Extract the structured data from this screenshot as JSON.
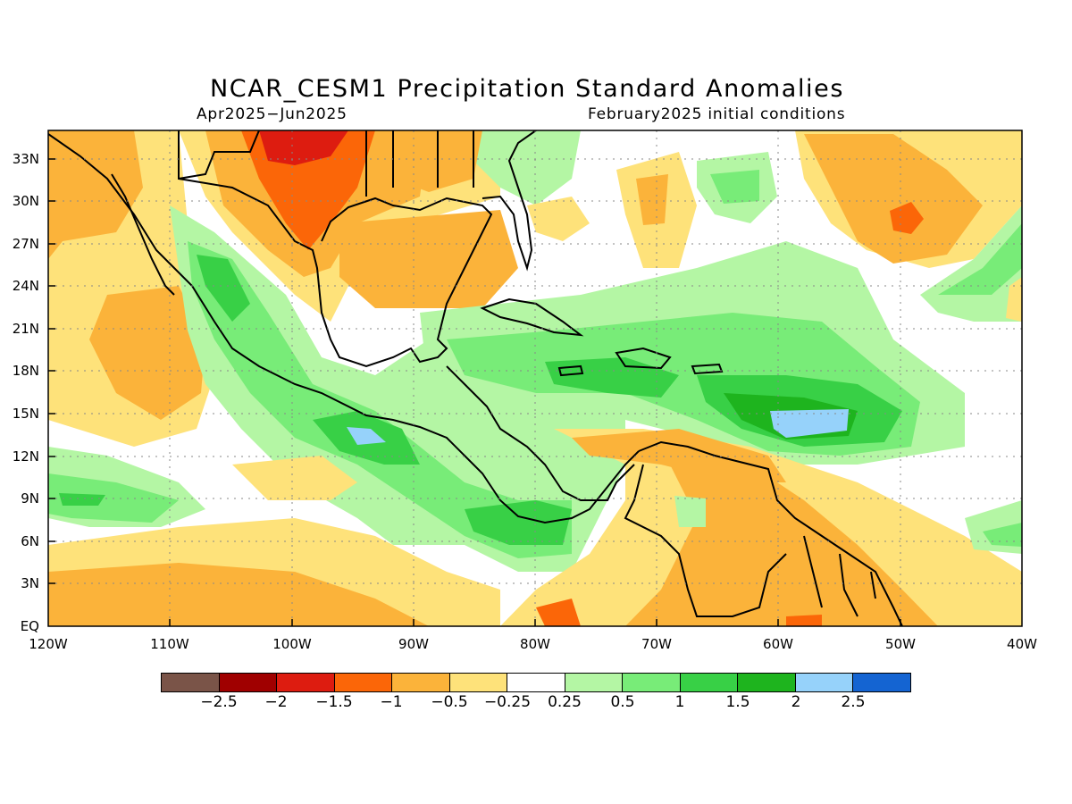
{
  "title": "NCAR_CESM1 Precipitation Standard Anomalies",
  "period": "Apr2025−Jun2025",
  "init": "February2025 initial conditions",
  "lat_labels": [
    "33N",
    "30N",
    "27N",
    "24N",
    "21N",
    "18N",
    "15N",
    "12N",
    "9N",
    "6N",
    "3N",
    "EQ"
  ],
  "lon_labels": [
    "120W",
    "110W",
    "100W",
    "90W",
    "80W",
    "70W",
    "60W",
    "50W",
    "40W"
  ],
  "legend": {
    "colors": [
      "#7a5448",
      "#a00000",
      "#dd1c10",
      "#fb6608",
      "#fbb33a",
      "#fee27a",
      "#ffffff",
      "#b4f6a4",
      "#78ec78",
      "#38d046",
      "#1eb41e",
      "#96d2fa",
      "#1464d2"
    ],
    "ticks": [
      "−2.5",
      "−2",
      "−1.5",
      "−1",
      "−0.5",
      "−0.25",
      "0.25",
      "0.5",
      "1",
      "1.5",
      "2",
      "2.5"
    ]
  },
  "map": {
    "domain": {
      "lon_range": [
        -120,
        -40
      ],
      "lat_range": [
        0,
        35
      ]
    },
    "gridlines": "dotted",
    "fill_colors": {
      "mexico_west": "#fee27a",
      "mexico_west_orange": "#fbb33a",
      "texas": "#fbb33a",
      "texas_dry": "#fb6608",
      "texas_core": "#dd1c10",
      "gulf": "#fee27a",
      "gulf_inner": "#fbb33a",
      "pacific_moist": "#b4f6a4",
      "pacific_moist2": "#78ec78",
      "pacific_moist3": "#38d046",
      "caribbean_light": "#b4f6a4",
      "caribbean": "#78ec78",
      "caribbean_core": "#38d046",
      "caribbean_peak": "#96d2fa",
      "south_america": "#fee27a",
      "south_america_orange": "#fbb33a",
      "equatorial": "#fee27a",
      "equatorial_orange": "#fbb33a",
      "atlantic_north": "#fbb33a",
      "atlantic_north_core": "#fb6608",
      "atlantic_green": "#78ec78"
    }
  }
}
